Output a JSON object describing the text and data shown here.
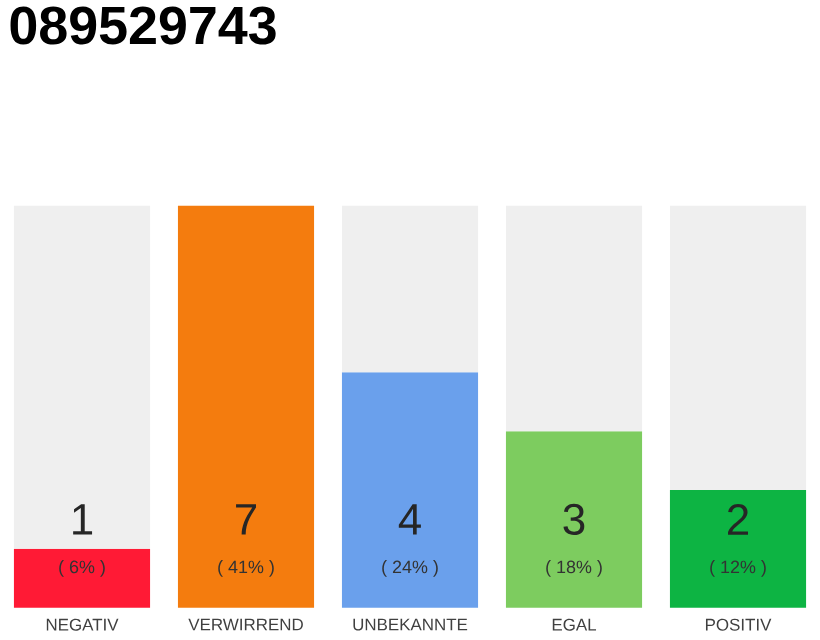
{
  "chart_data": {
    "type": "bar",
    "title": "089529743",
    "categories": [
      "NEGATIV",
      "VERWIRREND",
      "UNBEKANNTE",
      "EGAL",
      "POSITIV"
    ],
    "stacked": true,
    "ylim": [
      0,
      41
    ],
    "tick_labels": "x",
    "series": [
      {
        "colors": [
          "#ff1a35",
          "#f47c0e",
          "#6aa0ec",
          "#7dcc5f",
          "#0db443"
        ],
        "values": [
          6,
          41,
          24,
          18,
          12
        ],
        "value_labels": [
          "( 6% )",
          "( 41% )",
          "( 24% )",
          "( 18% )",
          "( 12% )"
        ]
      },
      {
        "color": "#efefef",
        "values": [
          35,
          0,
          17,
          23,
          29
        ]
      }
    ],
    "annotations": [
      "1",
      "7",
      "4",
      "3",
      "2"
    ]
  }
}
